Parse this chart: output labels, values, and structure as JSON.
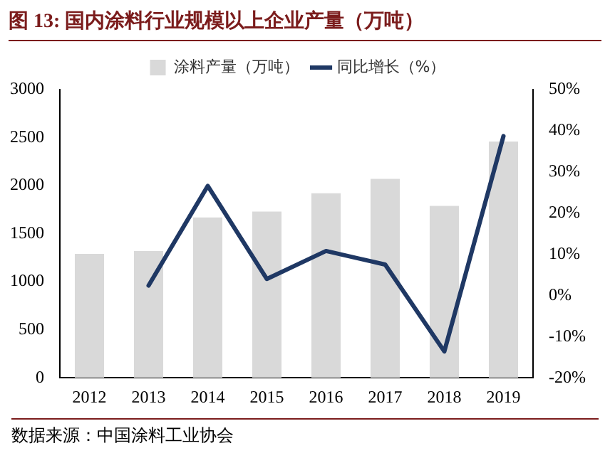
{
  "chart_data": {
    "type": "bar",
    "title": "图 13:  国内涂料行业规模以上企业产量（万吨）",
    "categories": [
      "2012",
      "2013",
      "2014",
      "2015",
      "2016",
      "2017",
      "2018",
      "2019"
    ],
    "series": [
      {
        "name": "涂料产量（万吨）",
        "color": "#d9d9d9",
        "values": [
          1290,
          1320,
          1670,
          1730,
          1920,
          2070,
          1790,
          2460
        ]
      },
      {
        "name": "同比增长（%）",
        "type": "line",
        "axis": "y2",
        "color": "#1f3864",
        "values": [
          null,
          2.4,
          26.6,
          4.0,
          10.8,
          7.5,
          -13.6,
          38.7
        ]
      }
    ],
    "ylim": [
      0,
      3000
    ],
    "yticks": [
      0,
      500,
      1000,
      1500,
      2000,
      2500,
      3000
    ],
    "y2lim": [
      -20,
      50
    ],
    "y2ticks": [
      {
        "value": -20,
        "label": "-20%"
      },
      {
        "value": -10,
        "label": "-10%"
      },
      {
        "value": 0,
        "label": "0%"
      },
      {
        "value": 10,
        "label": "10%"
      },
      {
        "value": 20,
        "label": "20%"
      },
      {
        "value": 30,
        "label": "30%"
      },
      {
        "value": 40,
        "label": "40%"
      },
      {
        "value": 50,
        "label": "50%"
      }
    ],
    "grid": false,
    "legend": "top",
    "marker": "none",
    "annotations": [
      "数据来源：中国涂料工业协会"
    ]
  }
}
